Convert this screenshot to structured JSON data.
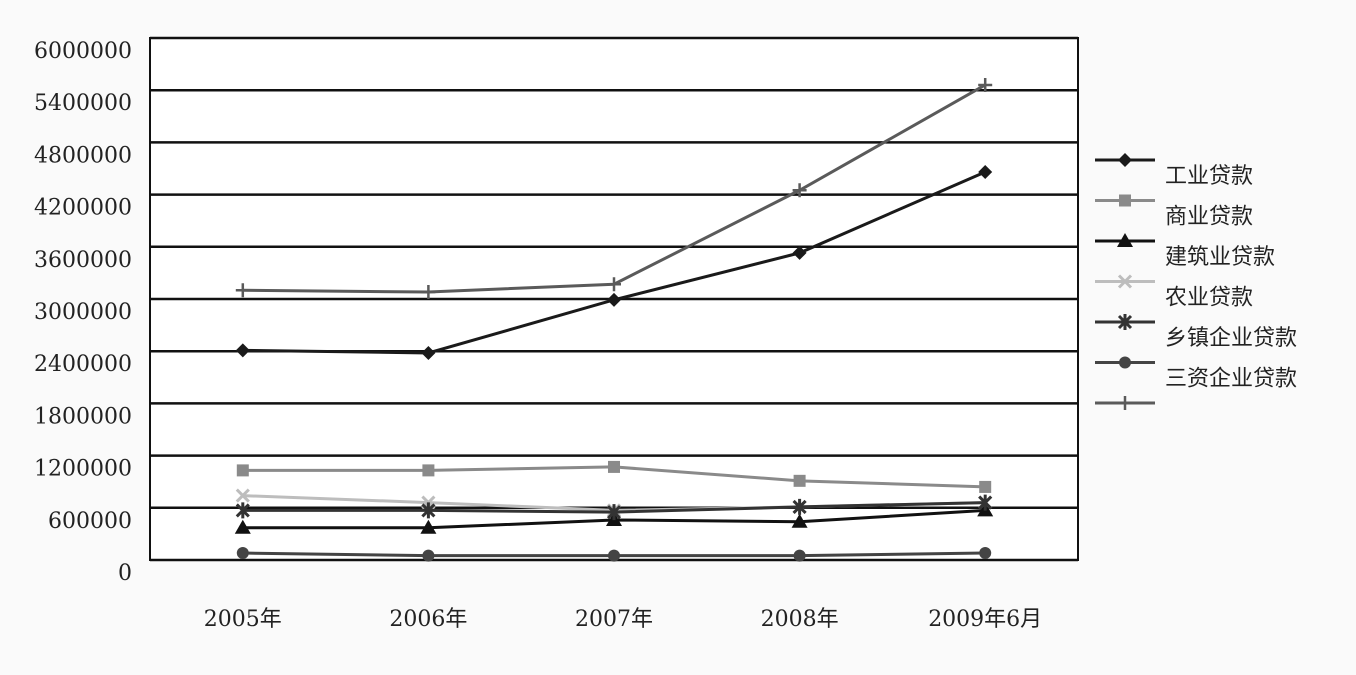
{
  "chart_data": {
    "type": "line",
    "categories": [
      "2005年",
      "2006年",
      "2007年",
      "2008年",
      "2009年6月"
    ],
    "series": [
      {
        "name": "工业贷款",
        "color": "#1a1a1a",
        "marker": "diamond",
        "values": [
          2410000,
          2380000,
          2990000,
          3530000,
          4460000
        ]
      },
      {
        "name": "商业贷款",
        "color": "#8a8a8a",
        "marker": "square",
        "values": [
          1030000,
          1030000,
          1070000,
          910000,
          840000
        ]
      },
      {
        "name": "建筑业贷款",
        "color": "#111111",
        "marker": "triangle",
        "values": [
          370000,
          370000,
          460000,
          440000,
          570000
        ]
      },
      {
        "name": "农业贷款",
        "color": "#bdbdbd",
        "marker": "x",
        "values": [
          740000,
          660000,
          570000,
          610000,
          660000
        ]
      },
      {
        "name": "乡镇企业贷款",
        "color": "#333333",
        "marker": "star",
        "values": [
          570000,
          570000,
          550000,
          610000,
          660000
        ]
      },
      {
        "name": "三资企业贷款",
        "color": "#444444",
        "marker": "circle",
        "values": [
          80000,
          50000,
          50000,
          50000,
          80000
        ]
      },
      {
        "color": "#5a5a5a",
        "marker": "plus",
        "values": [
          3100000,
          3080000,
          3170000,
          4250000,
          5460000
        ]
      }
    ],
    "ylim": [
      0,
      6000000
    ],
    "yticks": [
      0,
      600000,
      1200000,
      1800000,
      2400000,
      3000000,
      3600000,
      4200000,
      4800000,
      5400000,
      6000000
    ],
    "grid": true
  }
}
